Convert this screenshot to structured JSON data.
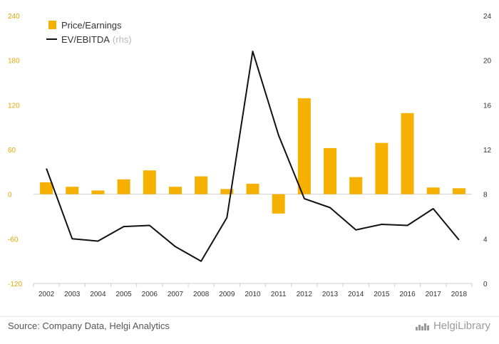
{
  "chart_data": {
    "type": "bar",
    "categories": [
      "2002",
      "2003",
      "2004",
      "2005",
      "2006",
      "2007",
      "2008",
      "2009",
      "2010",
      "2011",
      "2012",
      "2013",
      "2014",
      "2015",
      "2016",
      "2017",
      "2018"
    ],
    "series": [
      {
        "name": "Price/Earnings",
        "type": "bar",
        "axis": "left",
        "color": "#f5b000",
        "values": [
          16,
          10,
          5,
          20,
          32,
          10,
          24,
          7,
          14,
          -26,
          129,
          62,
          23,
          69,
          109,
          9,
          8
        ]
      },
      {
        "name": "EV/EBITDA",
        "name_suffix": "(rhs)",
        "type": "line",
        "axis": "right",
        "color": "#111111",
        "values": [
          10.3,
          4.0,
          3.8,
          5.1,
          5.2,
          3.3,
          2.0,
          5.9,
          20.8,
          13.3,
          7.6,
          6.8,
          4.8,
          5.3,
          5.2,
          6.7,
          3.9
        ]
      }
    ],
    "left_axis": {
      "ylim": [
        -120,
        240
      ],
      "ticks": [
        "240",
        "180",
        "120",
        "60",
        "0",
        "-60",
        "-120"
      ],
      "tick_color": "#e0a800"
    },
    "right_axis": {
      "ylim": [
        0,
        24
      ],
      "ticks": [
        "24",
        "20",
        "16",
        "12",
        "8",
        "4",
        "0"
      ]
    },
    "legend_position": "top-left",
    "grid": false
  },
  "footer": {
    "source": "Source: Company Data, Helgi Analytics",
    "brand": "HelgiLibrary"
  }
}
